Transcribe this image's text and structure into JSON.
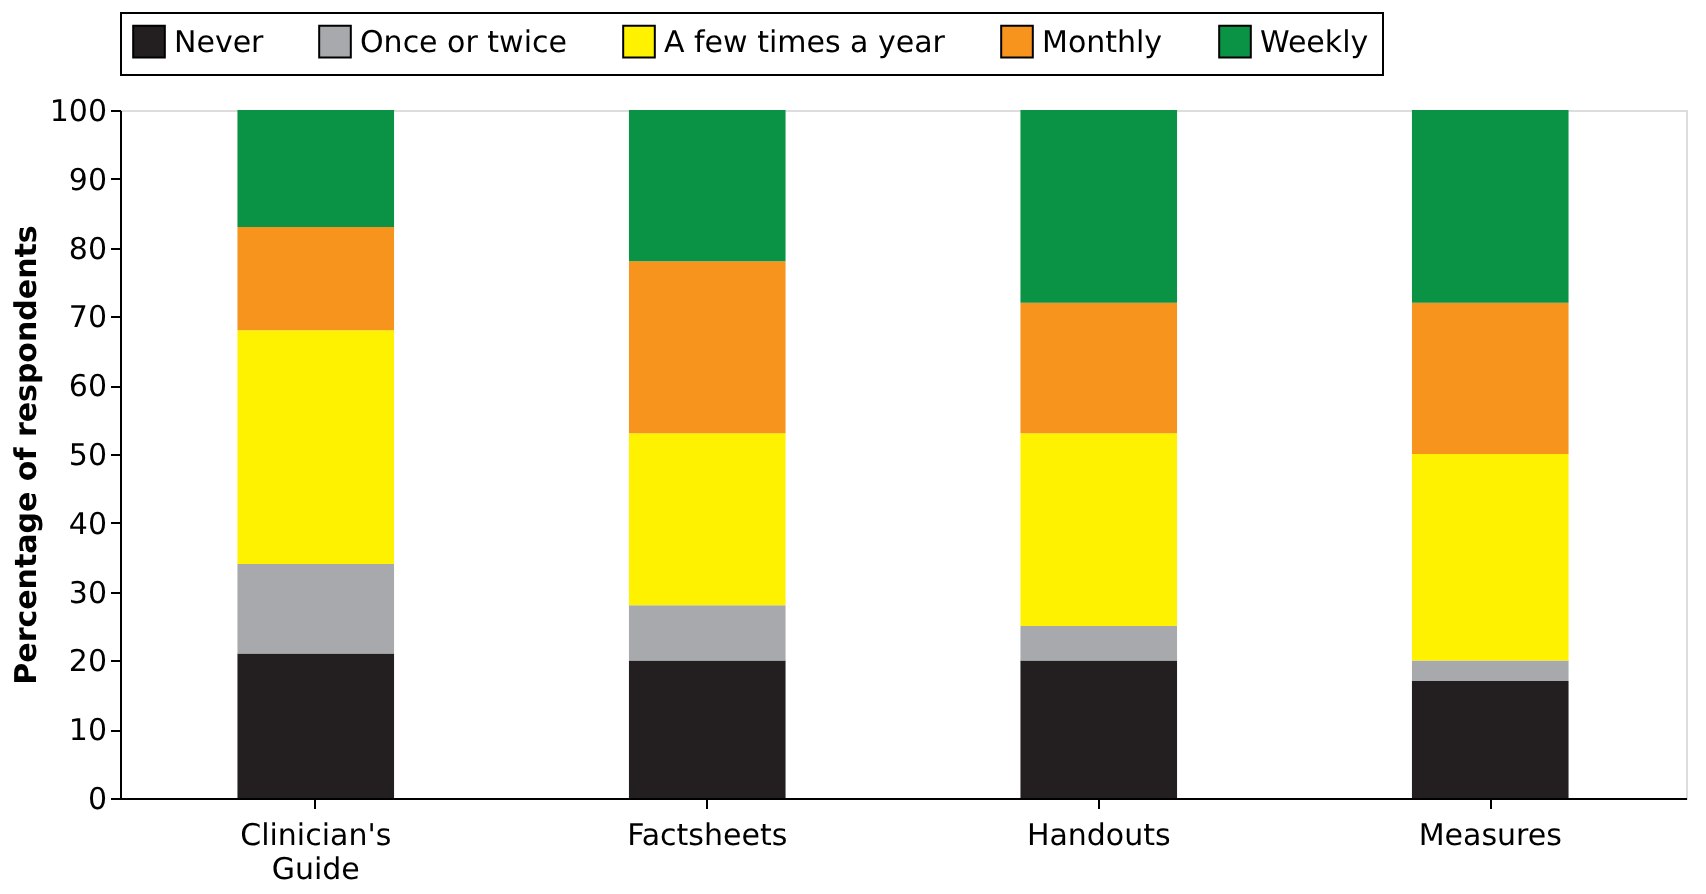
{
  "chart_data": {
    "type": "bar",
    "stacked": true,
    "ylabel": "Percentage of respondents",
    "categories": [
      "Clinician's Guide",
      "Factsheets",
      "Handouts",
      "Measures"
    ],
    "series": [
      {
        "name": "Never",
        "color": "#231f20",
        "values": [
          21,
          20,
          20,
          17
        ]
      },
      {
        "name": "Once or twice",
        "color": "#a7a9ac",
        "values": [
          13,
          8,
          5,
          3
        ]
      },
      {
        "name": "A few times a year",
        "color": "#fff200",
        "values": [
          34,
          25,
          28,
          30
        ]
      },
      {
        "name": "Monthly",
        "color": "#f7941d",
        "values": [
          15,
          25,
          19,
          22
        ]
      },
      {
        "name": "Weekly",
        "color": "#0a9344",
        "values": [
          17,
          22,
          28,
          28
        ]
      }
    ],
    "ylim": [
      0,
      100
    ],
    "yticks": [
      0,
      10,
      20,
      30,
      40,
      50,
      60,
      70,
      80,
      90,
      100
    ],
    "grid": false,
    "legend": "top"
  }
}
